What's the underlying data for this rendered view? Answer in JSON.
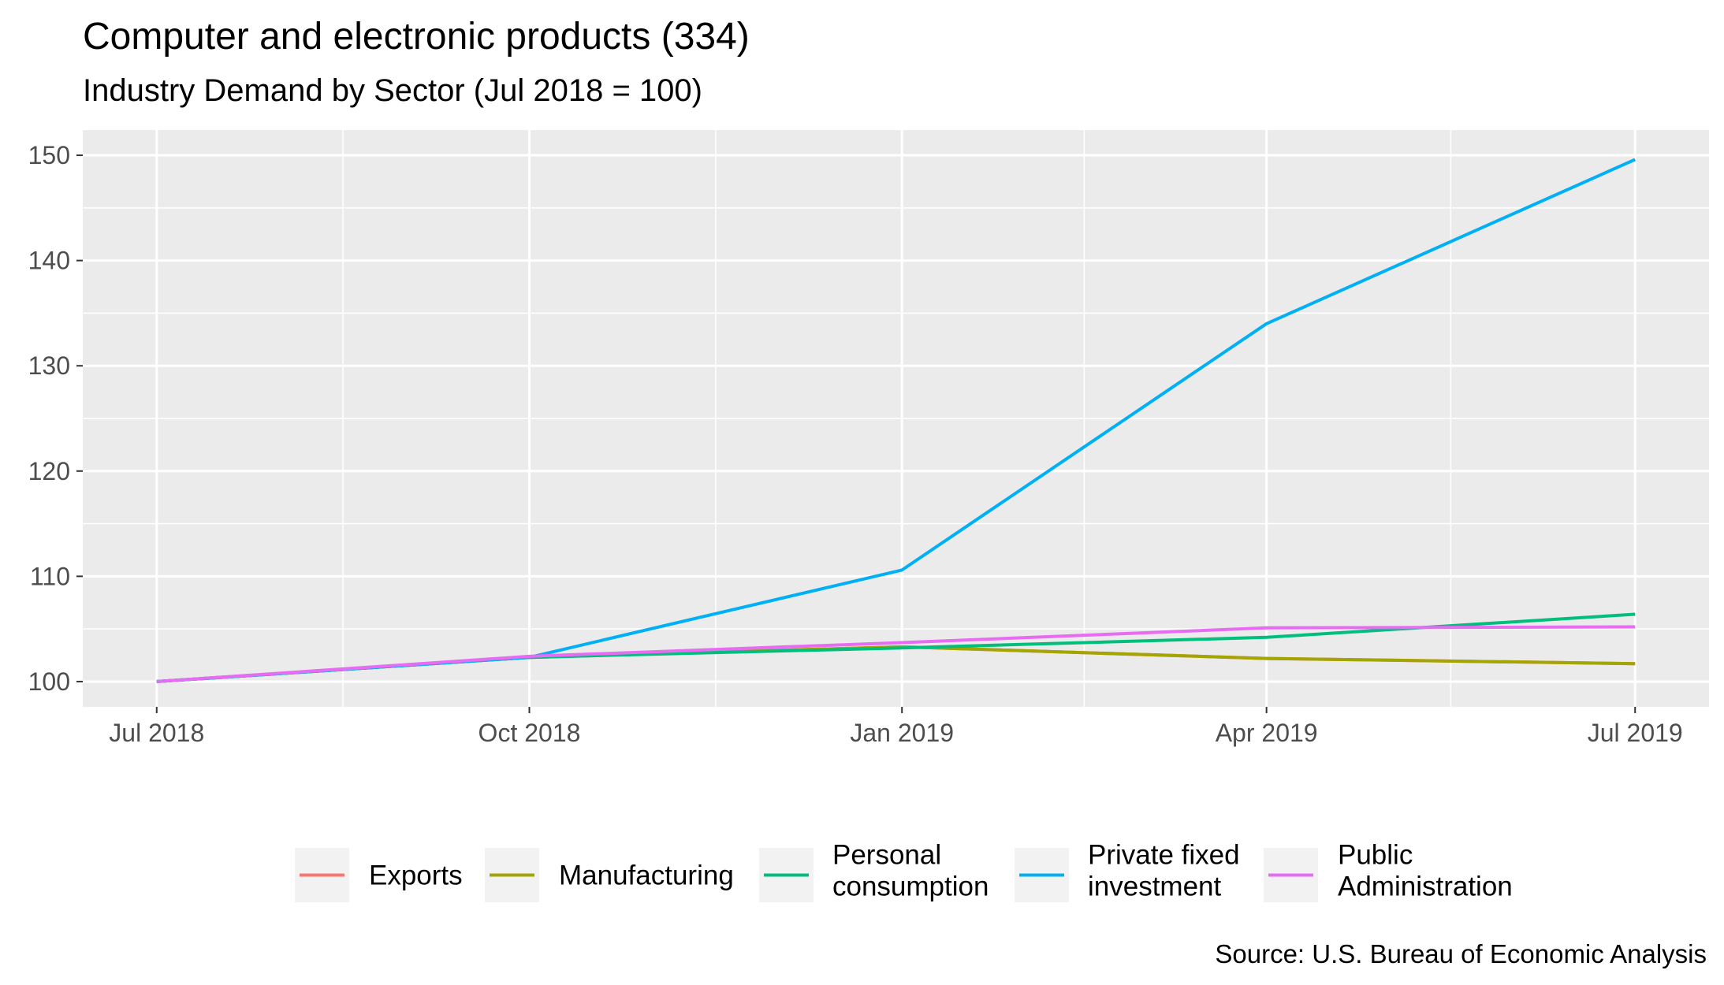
{
  "chart_data": {
    "type": "line",
    "title": "Computer and electronic products (334)",
    "subtitle": "Industry Demand by Sector (Jul 2018 = 100)",
    "caption": "Source: U.S. Bureau of Economic Analysis",
    "xlabel": "",
    "ylabel": "",
    "x": [
      "2018-07-01",
      "2018-10-01",
      "2019-01-01",
      "2019-04-01",
      "2019-07-01"
    ],
    "x_ticks": [
      "Jul 2018",
      "Oct 2018",
      "Jan 2019",
      "Apr 2019",
      "Jul 2019"
    ],
    "ylim": [
      97.6,
      152.4
    ],
    "y_ticks": [
      100,
      110,
      120,
      130,
      140,
      150
    ],
    "grid": true,
    "legend_position": "bottom",
    "series": [
      {
        "name": "Exports",
        "color": "#F8766D",
        "values": [
          100,
          102.3,
          103.3,
          102.2,
          101.7
        ]
      },
      {
        "name": "Manufacturing",
        "color": "#A3A500",
        "values": [
          100,
          102.3,
          103.3,
          102.2,
          101.7
        ]
      },
      {
        "name": "Personal consumption",
        "color": "#00BF7D",
        "values": [
          100,
          102.3,
          103.2,
          104.2,
          106.4
        ]
      },
      {
        "name": "Private fixed investment",
        "color": "#00B0F6",
        "values": [
          100,
          102.3,
          110.6,
          134.0,
          149.6
        ]
      },
      {
        "name": "Public Administration",
        "color": "#E76BF3",
        "values": [
          100,
          102.4,
          103.7,
          105.1,
          105.2
        ]
      }
    ],
    "legend_labels": [
      [
        "Exports"
      ],
      [
        "Manufacturing"
      ],
      [
        "Personal",
        "consumption"
      ],
      [
        "Private fixed",
        "investment"
      ],
      [
        "Public",
        "Administration"
      ]
    ]
  }
}
